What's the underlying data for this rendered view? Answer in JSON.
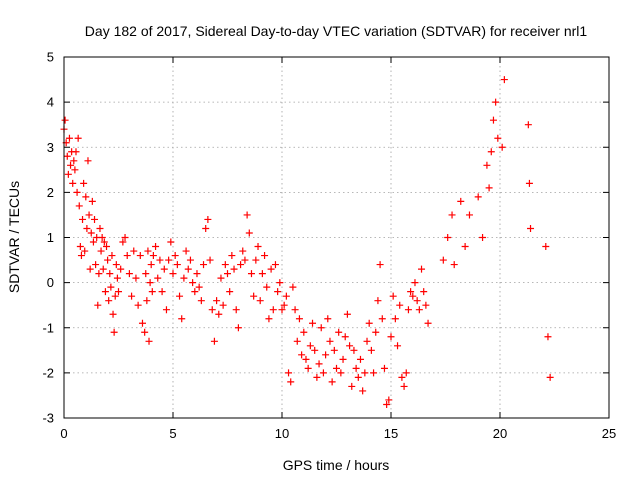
{
  "chart_data": {
    "type": "scatter",
    "title": "Day 182 of 2017, Sidereal Day-to-day VTEC variation (SDTVAR) for receiver nrl1",
    "xlabel": "GPS time / hours",
    "ylabel": "SDTVAR / TECUs",
    "xlim": [
      0,
      25
    ],
    "ylim": [
      -3,
      5
    ],
    "xticks": [
      0,
      5,
      10,
      15,
      20,
      25
    ],
    "yticks": [
      -3,
      -2,
      -1,
      0,
      1,
      2,
      3,
      4,
      5
    ],
    "grid": true,
    "marker": "+",
    "color": "#ff0000",
    "series": [
      {
        "name": "SDTVAR",
        "points": [
          [
            0.0,
            3.4
          ],
          [
            0.05,
            3.6
          ],
          [
            0.1,
            3.1
          ],
          [
            0.15,
            2.8
          ],
          [
            0.2,
            2.4
          ],
          [
            0.25,
            3.2
          ],
          [
            0.3,
            2.6
          ],
          [
            0.35,
            2.9
          ],
          [
            0.4,
            2.2
          ],
          [
            0.45,
            2.7
          ],
          [
            0.5,
            2.5
          ],
          [
            0.55,
            2.9
          ],
          [
            0.6,
            2.0
          ],
          [
            0.65,
            3.2
          ],
          [
            0.7,
            1.7
          ],
          [
            0.75,
            0.8
          ],
          [
            0.8,
            0.6
          ],
          [
            0.85,
            1.4
          ],
          [
            0.9,
            2.2
          ],
          [
            0.95,
            0.7
          ],
          [
            1.0,
            1.9
          ],
          [
            1.05,
            1.2
          ],
          [
            1.1,
            2.7
          ],
          [
            1.15,
            1.5
          ],
          [
            1.2,
            0.3
          ],
          [
            1.25,
            1.1
          ],
          [
            1.3,
            1.8
          ],
          [
            1.35,
            0.9
          ],
          [
            1.4,
            1.4
          ],
          [
            1.45,
            0.4
          ],
          [
            1.5,
            1.0
          ],
          [
            1.55,
            -0.5
          ],
          [
            1.6,
            0.2
          ],
          [
            1.65,
            1.2
          ],
          [
            1.7,
            0.7
          ],
          [
            1.75,
            1.0
          ],
          [
            1.8,
            0.3
          ],
          [
            1.85,
            0.9
          ],
          [
            1.9,
            -0.2
          ],
          [
            1.95,
            0.8
          ],
          [
            2.0,
            0.5
          ],
          [
            2.05,
            -0.4
          ],
          [
            2.1,
            0.2
          ],
          [
            2.15,
            -0.1
          ],
          [
            2.2,
            0.6
          ],
          [
            2.25,
            -0.7
          ],
          [
            2.3,
            -1.1
          ],
          [
            2.35,
            -0.3
          ],
          [
            2.4,
            0.4
          ],
          [
            2.45,
            0.1
          ],
          [
            2.5,
            -0.2
          ],
          [
            2.6,
            0.3
          ],
          [
            2.7,
            0.9
          ],
          [
            2.8,
            1.0
          ],
          [
            2.9,
            0.6
          ],
          [
            3.0,
            0.2
          ],
          [
            3.1,
            -0.3
          ],
          [
            3.2,
            0.7
          ],
          [
            3.3,
            0.1
          ],
          [
            3.4,
            -0.5
          ],
          [
            3.5,
            0.6
          ],
          [
            3.6,
            -0.9
          ],
          [
            3.7,
            -1.1
          ],
          [
            3.75,
            0.2
          ],
          [
            3.8,
            -0.4
          ],
          [
            3.85,
            0.7
          ],
          [
            3.9,
            -1.3
          ],
          [
            3.95,
            0.0
          ],
          [
            4.0,
            0.4
          ],
          [
            4.05,
            -0.2
          ],
          [
            4.1,
            0.6
          ],
          [
            4.2,
            0.8
          ],
          [
            4.3,
            0.1
          ],
          [
            4.4,
            0.5
          ],
          [
            4.5,
            -0.2
          ],
          [
            4.6,
            0.3
          ],
          [
            4.7,
            -0.6
          ],
          [
            4.8,
            0.5
          ],
          [
            4.9,
            0.9
          ],
          [
            5.0,
            0.2
          ],
          [
            5.1,
            0.6
          ],
          [
            5.2,
            0.4
          ],
          [
            5.3,
            -0.3
          ],
          [
            5.4,
            -0.8
          ],
          [
            5.5,
            0.1
          ],
          [
            5.6,
            0.7
          ],
          [
            5.7,
            0.3
          ],
          [
            5.8,
            0.5
          ],
          [
            5.9,
            0.0
          ],
          [
            6.0,
            -0.2
          ],
          [
            6.1,
            0.2
          ],
          [
            6.2,
            -0.1
          ],
          [
            6.3,
            -0.4
          ],
          [
            6.4,
            0.4
          ],
          [
            6.5,
            1.2
          ],
          [
            6.6,
            1.4
          ],
          [
            6.7,
            0.5
          ],
          [
            6.8,
            -0.6
          ],
          [
            6.9,
            -1.3
          ],
          [
            7.0,
            -0.4
          ],
          [
            7.1,
            -0.7
          ],
          [
            7.2,
            0.1
          ],
          [
            7.3,
            -0.5
          ],
          [
            7.4,
            0.4
          ],
          [
            7.5,
            0.2
          ],
          [
            7.6,
            -0.2
          ],
          [
            7.7,
            0.6
          ],
          [
            7.8,
            0.3
          ],
          [
            7.9,
            -0.6
          ],
          [
            8.0,
            -1.0
          ],
          [
            8.1,
            0.4
          ],
          [
            8.2,
            0.7
          ],
          [
            8.3,
            0.5
          ],
          [
            8.4,
            1.5
          ],
          [
            8.5,
            1.1
          ],
          [
            8.6,
            0.2
          ],
          [
            8.7,
            -0.3
          ],
          [
            8.8,
            0.5
          ],
          [
            8.9,
            0.8
          ],
          [
            9.0,
            -0.4
          ],
          [
            9.1,
            0.2
          ],
          [
            9.2,
            0.6
          ],
          [
            9.3,
            -0.1
          ],
          [
            9.4,
            -0.8
          ],
          [
            9.5,
            0.3
          ],
          [
            9.6,
            -0.6
          ],
          [
            9.7,
            0.4
          ],
          [
            9.8,
            -0.2
          ],
          [
            9.9,
            0.0
          ],
          [
            10.0,
            -0.6
          ],
          [
            10.1,
            -0.5
          ],
          [
            10.2,
            -0.3
          ],
          [
            10.3,
            -2.0
          ],
          [
            10.4,
            -2.2
          ],
          [
            10.5,
            -0.1
          ],
          [
            10.6,
            -0.6
          ],
          [
            10.7,
            -1.3
          ],
          [
            10.8,
            -0.8
          ],
          [
            10.9,
            -1.6
          ],
          [
            11.0,
            -1.1
          ],
          [
            11.1,
            -1.7
          ],
          [
            11.2,
            -1.9
          ],
          [
            11.3,
            -1.4
          ],
          [
            11.4,
            -0.9
          ],
          [
            11.5,
            -1.5
          ],
          [
            11.6,
            -2.1
          ],
          [
            11.7,
            -1.8
          ],
          [
            11.8,
            -1.0
          ],
          [
            11.9,
            -2.0
          ],
          [
            12.0,
            -1.6
          ],
          [
            12.1,
            -0.8
          ],
          [
            12.2,
            -1.3
          ],
          [
            12.3,
            -2.2
          ],
          [
            12.4,
            -1.5
          ],
          [
            12.5,
            -1.9
          ],
          [
            12.6,
            -1.1
          ],
          [
            12.7,
            -2.0
          ],
          [
            12.8,
            -1.7
          ],
          [
            12.9,
            -1.2
          ],
          [
            13.0,
            -0.7
          ],
          [
            13.1,
            -1.4
          ],
          [
            13.2,
            -2.3
          ],
          [
            13.3,
            -1.5
          ],
          [
            13.4,
            -1.9
          ],
          [
            13.5,
            -2.1
          ],
          [
            13.6,
            -1.7
          ],
          [
            13.7,
            -2.4
          ],
          [
            13.8,
            -2.0
          ],
          [
            13.9,
            -1.3
          ],
          [
            14.0,
            -0.9
          ],
          [
            14.1,
            -1.5
          ],
          [
            14.2,
            -2.0
          ],
          [
            14.3,
            -1.1
          ],
          [
            14.4,
            -0.4
          ],
          [
            14.5,
            0.4
          ],
          [
            14.6,
            -0.8
          ],
          [
            14.7,
            -1.9
          ],
          [
            14.8,
            -2.7
          ],
          [
            14.9,
            -2.6
          ],
          [
            15.0,
            -1.2
          ],
          [
            15.1,
            -0.3
          ],
          [
            15.2,
            -0.8
          ],
          [
            15.3,
            -1.4
          ],
          [
            15.4,
            -0.5
          ],
          [
            15.5,
            -2.1
          ],
          [
            15.6,
            -2.3
          ],
          [
            15.7,
            -2.0
          ],
          [
            15.8,
            -0.6
          ],
          [
            15.9,
            -0.2
          ],
          [
            16.0,
            -0.3
          ],
          [
            16.1,
            0.0
          ],
          [
            16.2,
            -0.4
          ],
          [
            16.3,
            -0.6
          ],
          [
            16.4,
            0.3
          ],
          [
            16.5,
            -0.2
          ],
          [
            16.6,
            -0.5
          ],
          [
            16.7,
            -0.9
          ],
          [
            17.4,
            0.5
          ],
          [
            17.6,
            1.0
          ],
          [
            17.8,
            1.5
          ],
          [
            17.9,
            0.4
          ],
          [
            18.2,
            1.8
          ],
          [
            18.4,
            0.8
          ],
          [
            18.6,
            1.5
          ],
          [
            19.0,
            1.9
          ],
          [
            19.2,
            1.0
          ],
          [
            19.4,
            2.6
          ],
          [
            19.5,
            2.1
          ],
          [
            19.6,
            2.9
          ],
          [
            19.7,
            3.6
          ],
          [
            19.8,
            4.0
          ],
          [
            19.9,
            3.2
          ],
          [
            20.1,
            3.0
          ],
          [
            20.2,
            4.5
          ],
          [
            21.3,
            3.5
          ],
          [
            21.35,
            2.2
          ],
          [
            21.4,
            1.2
          ],
          [
            22.1,
            0.8
          ],
          [
            22.2,
            -1.2
          ],
          [
            22.3,
            -2.1
          ]
        ]
      }
    ]
  }
}
